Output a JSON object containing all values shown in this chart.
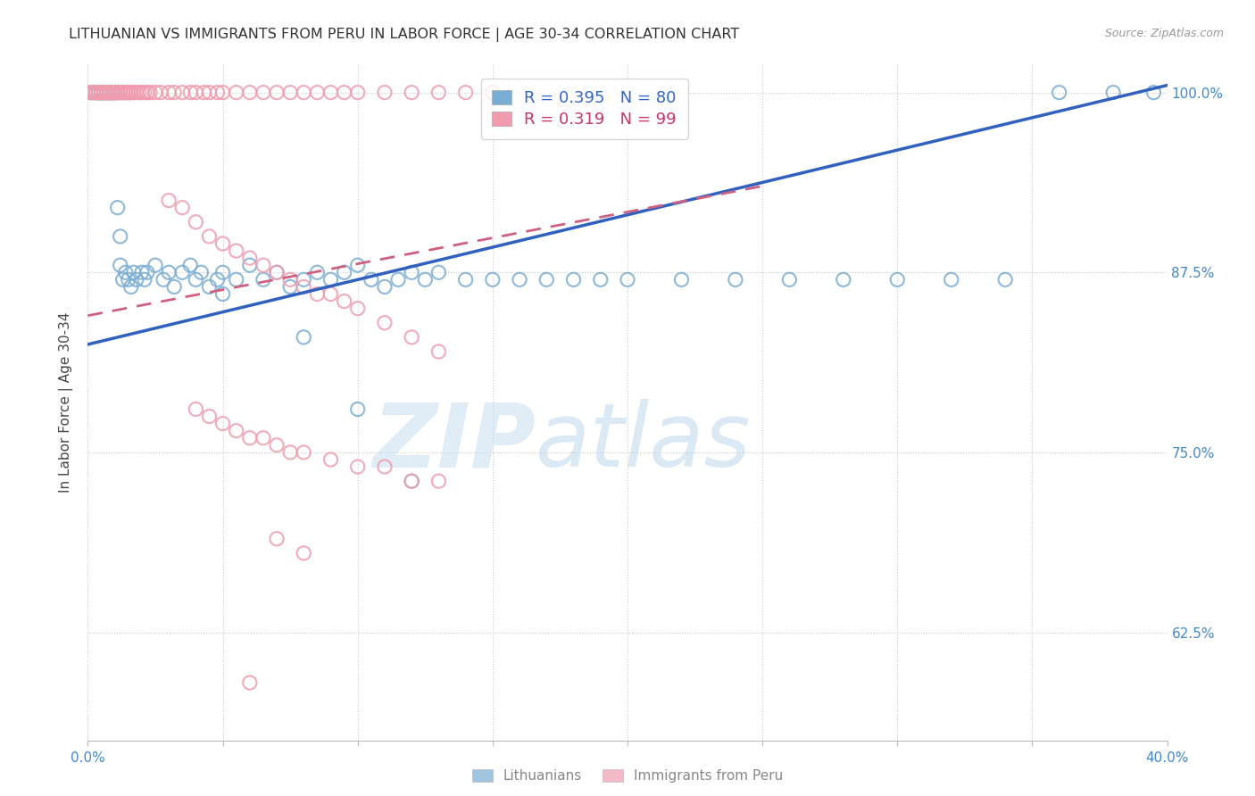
{
  "title": "LITHUANIAN VS IMMIGRANTS FROM PERU IN LABOR FORCE | AGE 30-34 CORRELATION CHART",
  "source": "Source: ZipAtlas.com",
  "ylabel": "In Labor Force | Age 30-34",
  "x_min": 0.0,
  "x_max": 0.4,
  "y_min": 0.55,
  "y_max": 1.02,
  "x_ticks": [
    0.0,
    0.05,
    0.1,
    0.15,
    0.2,
    0.25,
    0.3,
    0.35,
    0.4
  ],
  "x_tick_labels": [
    "0.0%",
    "",
    "",
    "",
    "",
    "",
    "",
    "",
    "40.0%"
  ],
  "y_ticks": [
    0.625,
    0.75,
    0.875,
    1.0
  ],
  "y_tick_labels": [
    "62.5%",
    "75.0%",
    "87.5%",
    "100.0%"
  ],
  "grid_color": "#c8c8c8",
  "background_color": "#ffffff",
  "blue_color": "#7aadd4",
  "pink_color": "#f09cae",
  "blue_line_color": "#3060c0",
  "pink_line_color": "#d06080",
  "watermark_zip": "ZIP",
  "watermark_atlas": "atlas",
  "blue_trend_x0": 0.0,
  "blue_trend_y0": 0.825,
  "blue_trend_x1": 0.4,
  "blue_trend_y1": 1.005,
  "pink_trend_x0": 0.0,
  "pink_trend_y0": 0.845,
  "pink_trend_x1": 0.25,
  "pink_trend_y1": 0.935,
  "blue_x": [
    0.001,
    0.002,
    0.003,
    0.003,
    0.004,
    0.004,
    0.005,
    0.005,
    0.005,
    0.006,
    0.006,
    0.007,
    0.007,
    0.008,
    0.008,
    0.009,
    0.009,
    0.01,
    0.01,
    0.011,
    0.011,
    0.012,
    0.012,
    0.013,
    0.014,
    0.015,
    0.016,
    0.017,
    0.018,
    0.02,
    0.021,
    0.022,
    0.025,
    0.028,
    0.03,
    0.032,
    0.035,
    0.038,
    0.04,
    0.042,
    0.045,
    0.048,
    0.05,
    0.055,
    0.06,
    0.065,
    0.07,
    0.075,
    0.08,
    0.085,
    0.09,
    0.095,
    0.1,
    0.105,
    0.11,
    0.115,
    0.12,
    0.125,
    0.13,
    0.14,
    0.15,
    0.16,
    0.17,
    0.18,
    0.19,
    0.2,
    0.22,
    0.24,
    0.26,
    0.28,
    0.3,
    0.32,
    0.34,
    0.36,
    0.38,
    0.395,
    0.05,
    0.08,
    0.1,
    0.12
  ],
  "blue_y": [
    1.0,
    1.0,
    1.0,
    1.0,
    1.0,
    1.0,
    1.0,
    1.0,
    1.0,
    1.0,
    1.0,
    1.0,
    1.0,
    1.0,
    1.0,
    1.0,
    1.0,
    1.0,
    1.0,
    1.0,
    0.92,
    0.9,
    0.88,
    0.87,
    0.875,
    0.87,
    0.865,
    0.875,
    0.87,
    0.875,
    0.87,
    0.875,
    0.88,
    0.87,
    0.875,
    0.865,
    0.875,
    0.88,
    0.87,
    0.875,
    0.865,
    0.87,
    0.875,
    0.87,
    0.88,
    0.87,
    0.875,
    0.865,
    0.87,
    0.875,
    0.87,
    0.875,
    0.88,
    0.87,
    0.865,
    0.87,
    0.875,
    0.87,
    0.875,
    0.87,
    0.87,
    0.87,
    0.87,
    0.87,
    0.87,
    0.87,
    0.87,
    0.87,
    0.87,
    0.87,
    0.87,
    0.87,
    0.87,
    1.0,
    1.0,
    1.0,
    0.86,
    0.83,
    0.78,
    0.73
  ],
  "pink_x": [
    0.001,
    0.002,
    0.003,
    0.003,
    0.004,
    0.004,
    0.005,
    0.005,
    0.005,
    0.006,
    0.006,
    0.007,
    0.007,
    0.008,
    0.008,
    0.009,
    0.009,
    0.01,
    0.01,
    0.011,
    0.011,
    0.012,
    0.012,
    0.013,
    0.013,
    0.014,
    0.014,
    0.015,
    0.015,
    0.016,
    0.016,
    0.017,
    0.018,
    0.019,
    0.02,
    0.021,
    0.022,
    0.023,
    0.025,
    0.027,
    0.03,
    0.032,
    0.035,
    0.038,
    0.04,
    0.043,
    0.045,
    0.048,
    0.05,
    0.055,
    0.06,
    0.065,
    0.07,
    0.075,
    0.08,
    0.085,
    0.09,
    0.095,
    0.1,
    0.11,
    0.12,
    0.13,
    0.14,
    0.15,
    0.03,
    0.035,
    0.04,
    0.045,
    0.05,
    0.055,
    0.06,
    0.065,
    0.07,
    0.075,
    0.08,
    0.085,
    0.09,
    0.095,
    0.1,
    0.11,
    0.12,
    0.13,
    0.04,
    0.045,
    0.05,
    0.055,
    0.06,
    0.065,
    0.07,
    0.075,
    0.08,
    0.09,
    0.1,
    0.11,
    0.12,
    0.13,
    0.06,
    0.07,
    0.08
  ],
  "pink_y": [
    1.0,
    1.0,
    1.0,
    1.0,
    1.0,
    1.0,
    1.0,
    1.0,
    1.0,
    1.0,
    1.0,
    1.0,
    1.0,
    1.0,
    1.0,
    1.0,
    1.0,
    1.0,
    1.0,
    1.0,
    1.0,
    1.0,
    1.0,
    1.0,
    1.0,
    1.0,
    1.0,
    1.0,
    1.0,
    1.0,
    1.0,
    1.0,
    1.0,
    1.0,
    1.0,
    1.0,
    1.0,
    1.0,
    1.0,
    1.0,
    1.0,
    1.0,
    1.0,
    1.0,
    1.0,
    1.0,
    1.0,
    1.0,
    1.0,
    1.0,
    1.0,
    1.0,
    1.0,
    1.0,
    1.0,
    1.0,
    1.0,
    1.0,
    1.0,
    1.0,
    1.0,
    1.0,
    1.0,
    1.0,
    0.925,
    0.92,
    0.91,
    0.9,
    0.895,
    0.89,
    0.885,
    0.88,
    0.875,
    0.87,
    0.865,
    0.86,
    0.86,
    0.855,
    0.85,
    0.84,
    0.83,
    0.82,
    0.78,
    0.775,
    0.77,
    0.765,
    0.76,
    0.76,
    0.755,
    0.75,
    0.75,
    0.745,
    0.74,
    0.74,
    0.73,
    0.73,
    0.59,
    0.69,
    0.68
  ]
}
